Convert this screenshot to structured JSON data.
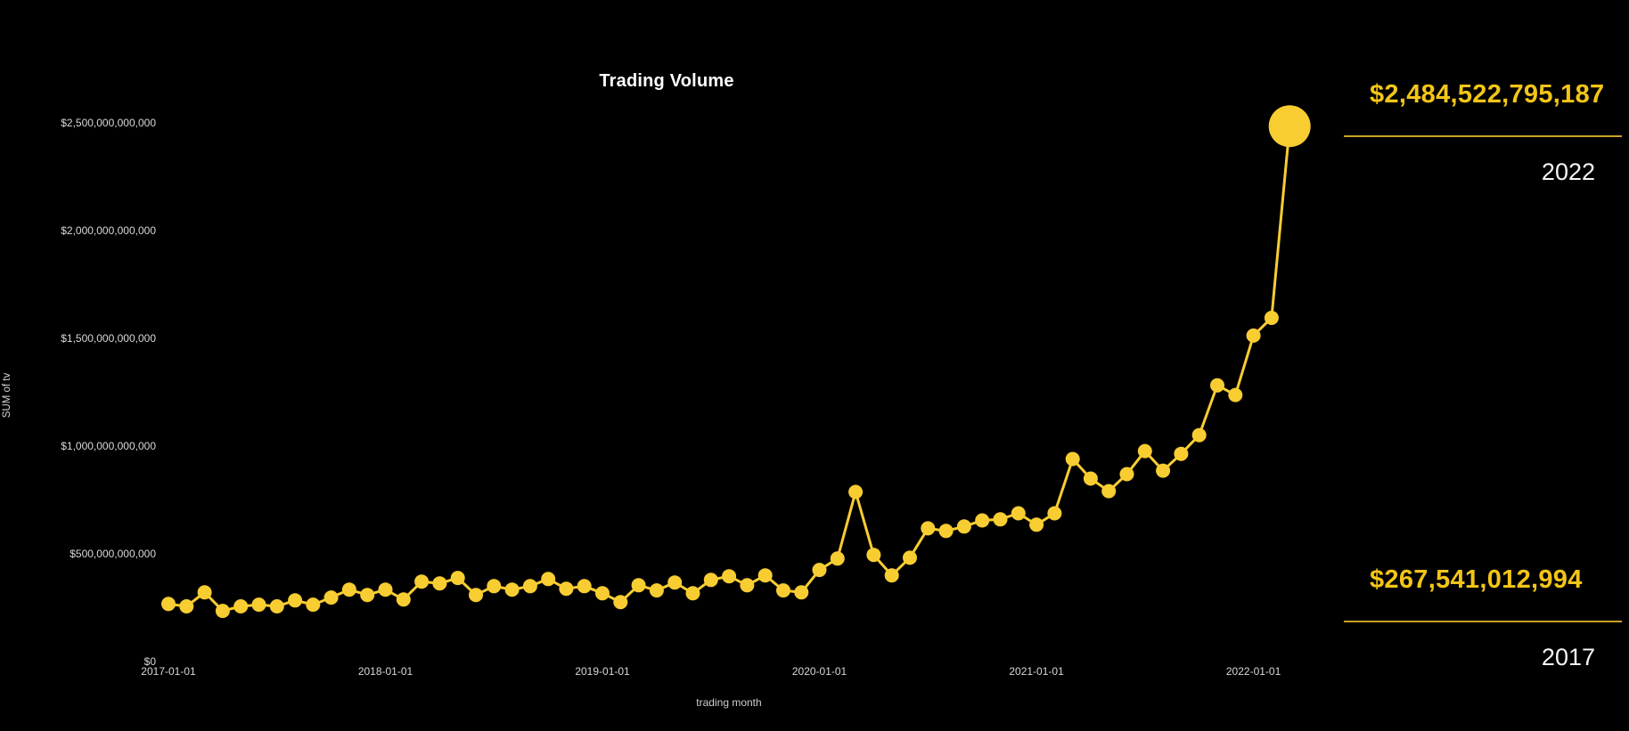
{
  "page": {
    "background": "#000000"
  },
  "chart_data": {
    "type": "line",
    "title": "Trading Volume",
    "xlabel": "trading month",
    "ylabel": "SUM of tv",
    "legend": "none",
    "grid": false,
    "ylim": [
      0,
      2500000000000
    ],
    "line_color": "#F8CD32",
    "point_color": "#F8CD32",
    "highlight_last_point": true,
    "y_tick_values": [
      0,
      500000000000,
      1000000000000,
      1500000000000,
      2000000000000,
      2500000000000
    ],
    "y_tick_labels": [
      "$0",
      "$500,000,000,000",
      "$1,000,000,000,000",
      "$1,500,000,000,000",
      "$2,000,000,000,000",
      "$2,500,000,000,000"
    ],
    "x_tick_labels": [
      "2017-01-01",
      "2018-01-01",
      "2019-01-01",
      "2020-01-01",
      "2021-01-01",
      "2022-01-01"
    ],
    "x": [
      "2017-01-01",
      "2017-02-01",
      "2017-03-01",
      "2017-04-01",
      "2017-05-01",
      "2017-06-01",
      "2017-07-01",
      "2017-08-01",
      "2017-09-01",
      "2017-10-01",
      "2017-11-01",
      "2017-12-01",
      "2018-01-01",
      "2018-02-01",
      "2018-03-01",
      "2018-04-01",
      "2018-05-01",
      "2018-06-01",
      "2018-07-01",
      "2018-08-01",
      "2018-09-01",
      "2018-10-01",
      "2018-11-01",
      "2018-12-01",
      "2019-01-01",
      "2019-02-01",
      "2019-03-01",
      "2019-04-01",
      "2019-05-01",
      "2019-06-01",
      "2019-07-01",
      "2019-08-01",
      "2019-09-01",
      "2019-10-01",
      "2019-11-01",
      "2019-12-01",
      "2020-01-01",
      "2020-02-01",
      "2020-03-01",
      "2020-04-01",
      "2020-05-01",
      "2020-06-01",
      "2020-07-01",
      "2020-08-01",
      "2020-09-01",
      "2020-10-01",
      "2020-11-01",
      "2020-12-01",
      "2021-01-01",
      "2021-02-01",
      "2021-03-01",
      "2021-04-01",
      "2021-05-01",
      "2021-06-01",
      "2021-07-01",
      "2021-08-01",
      "2021-09-01",
      "2021-10-01",
      "2021-11-01",
      "2021-12-01",
      "2022-01-01",
      "2022-02-01",
      "2022-03-01"
    ],
    "values": [
      267541012994,
      256000000000,
      321000000000,
      235000000000,
      256000000000,
      264000000000,
      256000000000,
      284000000000,
      264000000000,
      297000000000,
      334000000000,
      309000000000,
      334000000000,
      288000000000,
      371000000000,
      363000000000,
      388000000000,
      309000000000,
      350000000000,
      334000000000,
      350000000000,
      383000000000,
      338000000000,
      350000000000,
      317000000000,
      276000000000,
      354000000000,
      330000000000,
      367000000000,
      317000000000,
      379000000000,
      396000000000,
      354000000000,
      400000000000,
      330000000000,
      321000000000,
      425000000000,
      478000000000,
      787000000000,
      495000000000,
      400000000000,
      482000000000,
      618000000000,
      606000000000,
      627000000000,
      655000000000,
      660000000000,
      688000000000,
      635000000000,
      688000000000,
      940000000000,
      849000000000,
      791000000000,
      870000000000,
      977000000000,
      886000000000,
      964000000000,
      1051000000000,
      1282000000000,
      1237000000000,
      1513000000000,
      1595000000000,
      2484522795187
    ]
  },
  "stats": {
    "latest": {
      "value": "$2,484,522,795,187",
      "year": "2022"
    },
    "first": {
      "value": "$267,541,012,994",
      "year": "2017"
    }
  },
  "colors": {
    "accent_yellow": "#F8CD32",
    "stat_value_yellow": "#F3C517",
    "divider_yellow": "#C9A227",
    "axis_text": "#D8D8D8",
    "title_text": "#FFFFFF"
  }
}
